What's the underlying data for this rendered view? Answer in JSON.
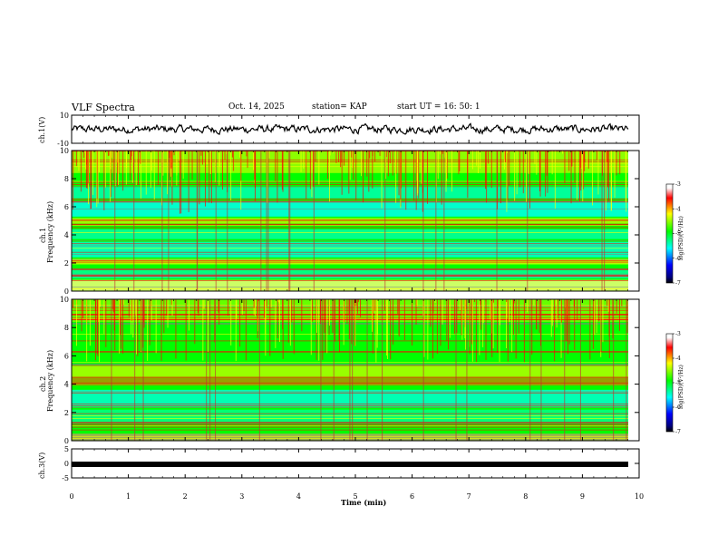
{
  "header": {
    "title": "VLF Spectra",
    "date": "Oct. 14, 2025",
    "station": "station= KAP",
    "start": "start  UT  =   16: 50: 1"
  },
  "chart_data": [
    {
      "type": "line",
      "name": "ch1-voltage",
      "ylabel": "ch.1(V)",
      "ylim": [
        -10,
        10
      ],
      "yticks": [
        "10",
        "-10"
      ],
      "xlim": [
        0,
        9.83
      ],
      "description_values": "noisy waveform oscillating roughly between -4 and +4 V"
    },
    {
      "type": "heatmap",
      "name": "ch1-spectrogram",
      "ylabel": "ch.1",
      "ylabel2": "Frequency (kHz)",
      "ylim": [
        0,
        10
      ],
      "yticks": [
        "0",
        "2",
        "4",
        "6",
        "8",
        "10"
      ],
      "colorbar": {
        "label": "log(PSD)(V²/Hz)",
        "range": [
          -7,
          -3
        ],
        "ticks": [
          "-3",
          "-4",
          "-5",
          "-6",
          "-7"
        ]
      }
    },
    {
      "type": "heatmap",
      "name": "ch2-spectrogram",
      "ylabel": "ch.2",
      "ylabel2": "Frequency (kHz)",
      "ylim": [
        0,
        10
      ],
      "yticks": [
        "0",
        "2",
        "4",
        "6",
        "8",
        "10"
      ],
      "colorbar": {
        "label": "log(PSD)(V²/Hz)",
        "range": [
          -7,
          -3
        ],
        "ticks": [
          "-3",
          "-4",
          "-5",
          "-6",
          "-7"
        ]
      }
    },
    {
      "type": "line",
      "name": "ch3-voltage",
      "ylabel": "ch.3(V)",
      "ylim": [
        -5,
        5
      ],
      "yticks": [
        "5",
        "0",
        "-5"
      ],
      "constant_value": -0.3
    }
  ],
  "xaxis": {
    "label": "Time  (min)",
    "ticks": [
      "0",
      "1",
      "2",
      "3",
      "4",
      "5",
      "6",
      "7",
      "8",
      "9",
      "10"
    ],
    "xlim": [
      0,
      10
    ]
  },
  "colors": {
    "axis": "#000000",
    "background": "#ffffff"
  }
}
